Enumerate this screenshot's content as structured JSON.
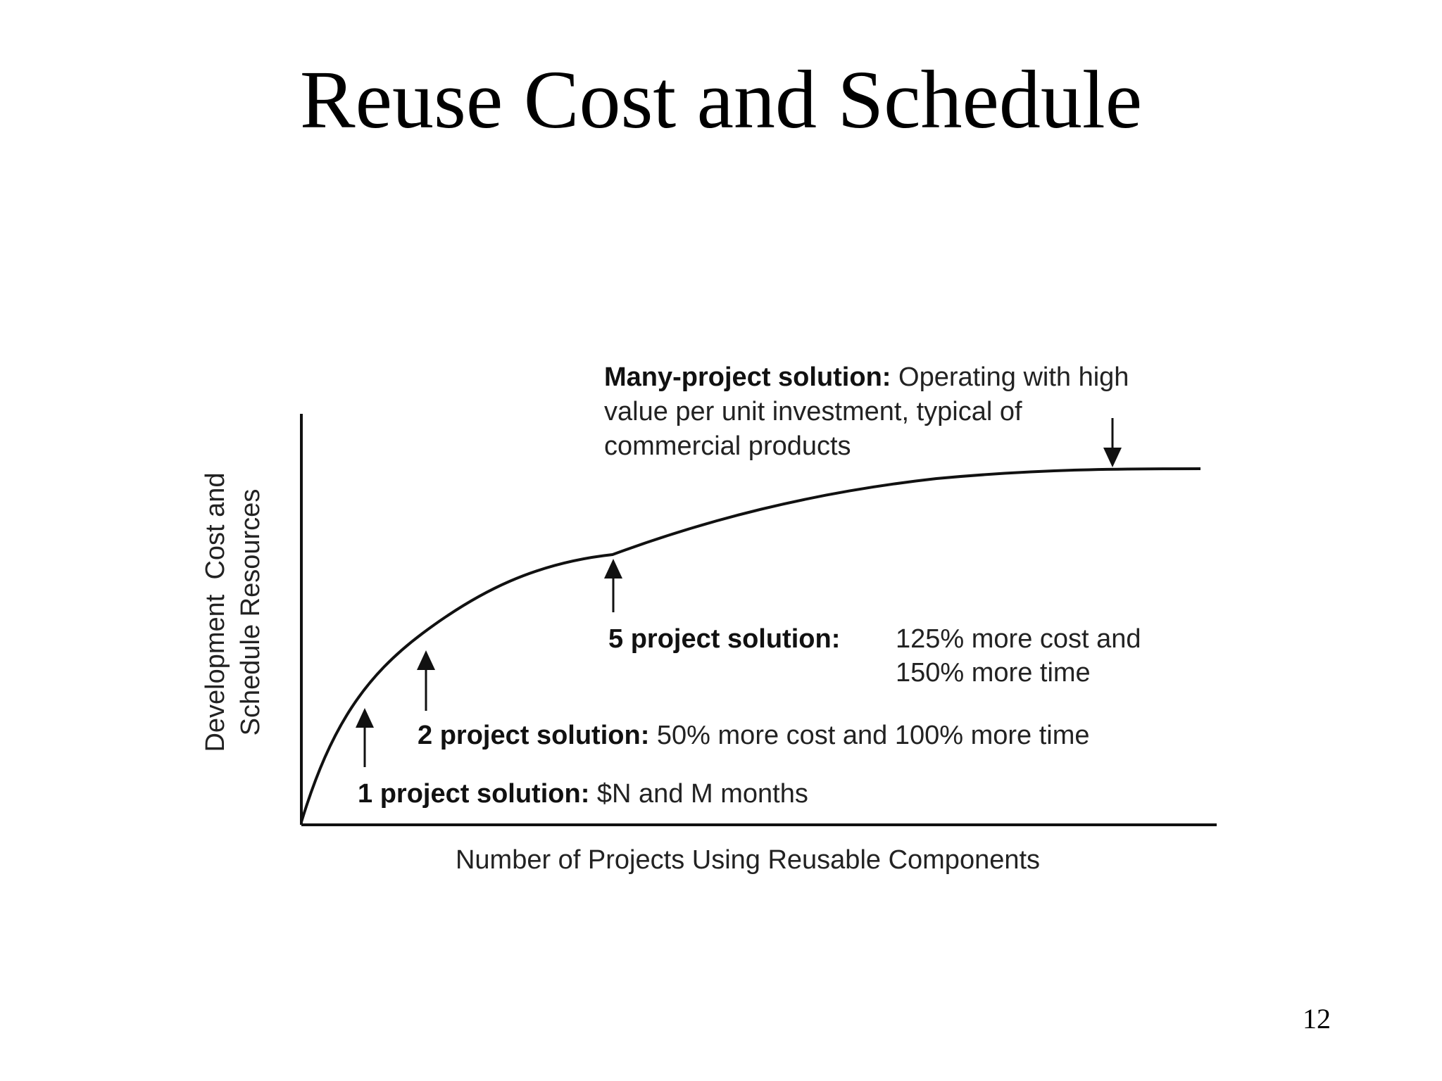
{
  "slide": {
    "title": "Reuse Cost and Schedule",
    "page_number": "12"
  },
  "diagram": {
    "x_axis_label": "Number of Projects Using Reusable Components",
    "y_axis_label_line1": "Development  Cost and",
    "y_axis_label_line2": "Schedule Resources",
    "annotations": {
      "many_project": {
        "bold": "Many-project solution:",
        "line1_rest": " Operating with high",
        "line2": "value per unit investment, typical of",
        "line3": "commercial products"
      },
      "five_project": {
        "bold": "5 project solution:",
        "line1_rest": "125% more cost and",
        "line2": "150% more time"
      },
      "two_project": {
        "bold": "2 project solution:",
        "rest": " 50% more cost and 100% more time"
      },
      "one_project": {
        "bold": "1 project solution:",
        "rest": " $N and M months"
      }
    },
    "colors": {
      "line": "#111111",
      "text": "#222222"
    }
  }
}
